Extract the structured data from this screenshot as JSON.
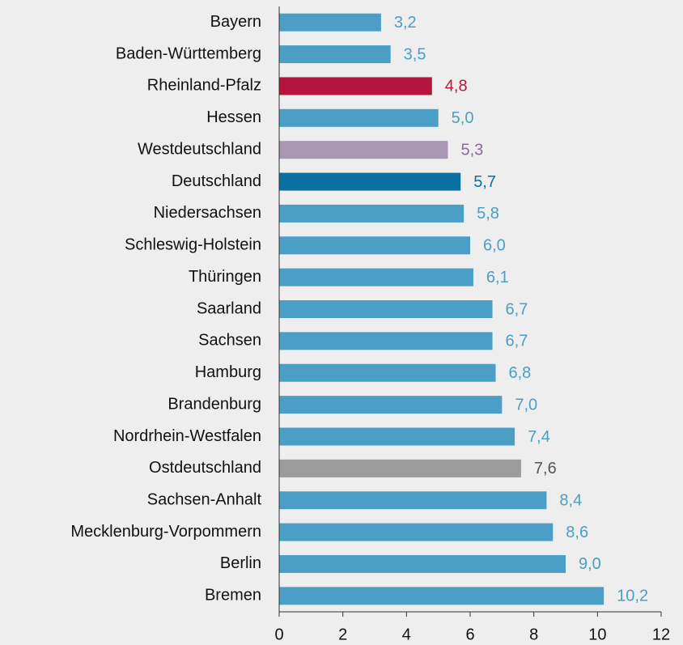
{
  "chart_data": {
    "type": "barh",
    "categories": [
      "Bayern",
      "Baden-Württemberg",
      "Rheinland-Pfalz",
      "Hessen",
      "Westdeutschland",
      "Deutschland",
      "Niedersachsen",
      "Schleswig-Holstein",
      "Thüringen",
      "Saarland",
      "Sachsen",
      "Hamburg",
      "Brandenburg",
      "Nordrhein-Westfalen",
      "Ostdeutschland",
      "Sachsen-Anhalt",
      "Mecklenburg-Vorpommern",
      "Berlin",
      "Bremen"
    ],
    "values": [
      3.2,
      3.5,
      4.8,
      5.0,
      5.3,
      5.7,
      5.8,
      6.0,
      6.1,
      6.7,
      6.7,
      6.8,
      7.0,
      7.4,
      7.6,
      8.4,
      8.6,
      9.0,
      10.2
    ],
    "value_labels": [
      "3,2",
      "3,5",
      "4,8",
      "5,0",
      "5,3",
      "5,7",
      "5,8",
      "6,0",
      "6,1",
      "6,7",
      "6,7",
      "6,8",
      "7,0",
      "7,4",
      "7,6",
      "8,4",
      "8,6",
      "9,0",
      "10,2"
    ],
    "colors": [
      "#4b9ec6",
      "#4b9ec6",
      "#b5143f",
      "#4b9ec6",
      "#a995b4",
      "#0b6fa1",
      "#4b9ec6",
      "#4b9ec6",
      "#4b9ec6",
      "#4b9ec6",
      "#4b9ec6",
      "#4b9ec6",
      "#4b9ec6",
      "#4b9ec6",
      "#9c9c9c",
      "#4b9ec6",
      "#4b9ec6",
      "#4b9ec6",
      "#4b9ec6"
    ],
    "label_colors": [
      "#4b9ec6",
      "#4b9ec6",
      "#b5143f",
      "#4b9ec6",
      "#8c6a98",
      "#0b6fa1",
      "#4b9ec6",
      "#4b9ec6",
      "#4b9ec6",
      "#4b9ec6",
      "#4b9ec6",
      "#4b9ec6",
      "#4b9ec6",
      "#4b9ec6",
      "#555555",
      "#4b9ec6",
      "#4b9ec6",
      "#4b9ec6",
      "#4b9ec6"
    ],
    "xlim": [
      0,
      12
    ],
    "xticks": [
      0,
      2,
      4,
      6,
      8,
      10,
      12
    ]
  }
}
